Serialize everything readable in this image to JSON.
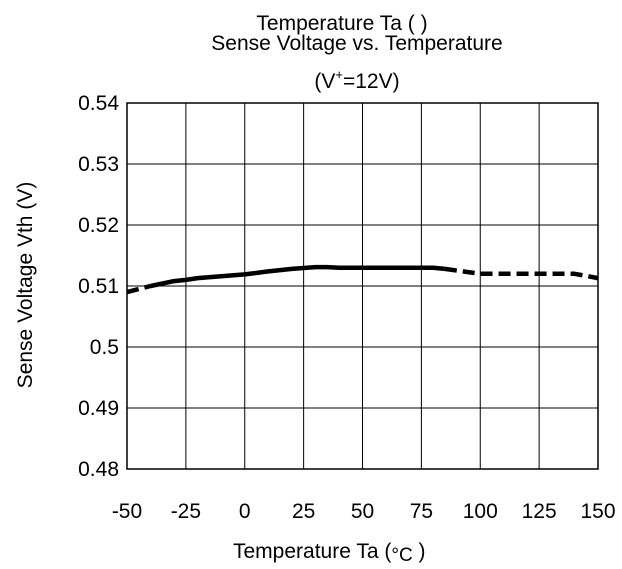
{
  "chart_data": {
    "type": "line",
    "title_overlay": "Temperature  Ta (      )",
    "title": "Sense Voltage vs. Temperature",
    "subtitle": {
      "prefix": "(V",
      "sup": "+",
      "suffix": "=12V)"
    },
    "xlabel": {
      "text": "Temperature  Ta (",
      "unit": "°C",
      "close": " )"
    },
    "ylabel": "Sense Voltage  Vth  (V)",
    "xlim": [
      -50,
      150
    ],
    "ylim": [
      0.48,
      0.54
    ],
    "xticks": [
      -50,
      -25,
      0,
      25,
      50,
      75,
      100,
      125,
      150
    ],
    "xtick_labels": [
      "-50",
      "-25",
      "0",
      "25",
      "50",
      "75",
      "100",
      "125",
      "150"
    ],
    "yticks": [
      0.48,
      0.49,
      0.5,
      0.51,
      0.52,
      0.53,
      0.54
    ],
    "ytick_labels": [
      "0.48",
      "0.49",
      "0.5",
      "0.51",
      "0.52",
      "0.53",
      "0.54"
    ],
    "grid": true,
    "line_color": "#000000",
    "series": [
      {
        "style": "dashed",
        "x": [
          -50,
          -40
        ],
        "y": [
          0.509,
          0.51
        ]
      },
      {
        "style": "solid",
        "x": [
          -40,
          -30,
          -25,
          -20,
          -10,
          0,
          10,
          20,
          30,
          35,
          40,
          50,
          60,
          70,
          80,
          85
        ],
        "y": [
          0.51,
          0.5108,
          0.511,
          0.5113,
          0.5116,
          0.5119,
          0.5124,
          0.5128,
          0.5131,
          0.5131,
          0.513,
          0.513,
          0.513,
          0.513,
          0.513,
          0.5128
        ]
      },
      {
        "style": "dashed",
        "x": [
          85,
          100,
          125,
          140,
          150
        ],
        "y": [
          0.5128,
          0.512,
          0.512,
          0.512,
          0.5113
        ]
      }
    ]
  }
}
